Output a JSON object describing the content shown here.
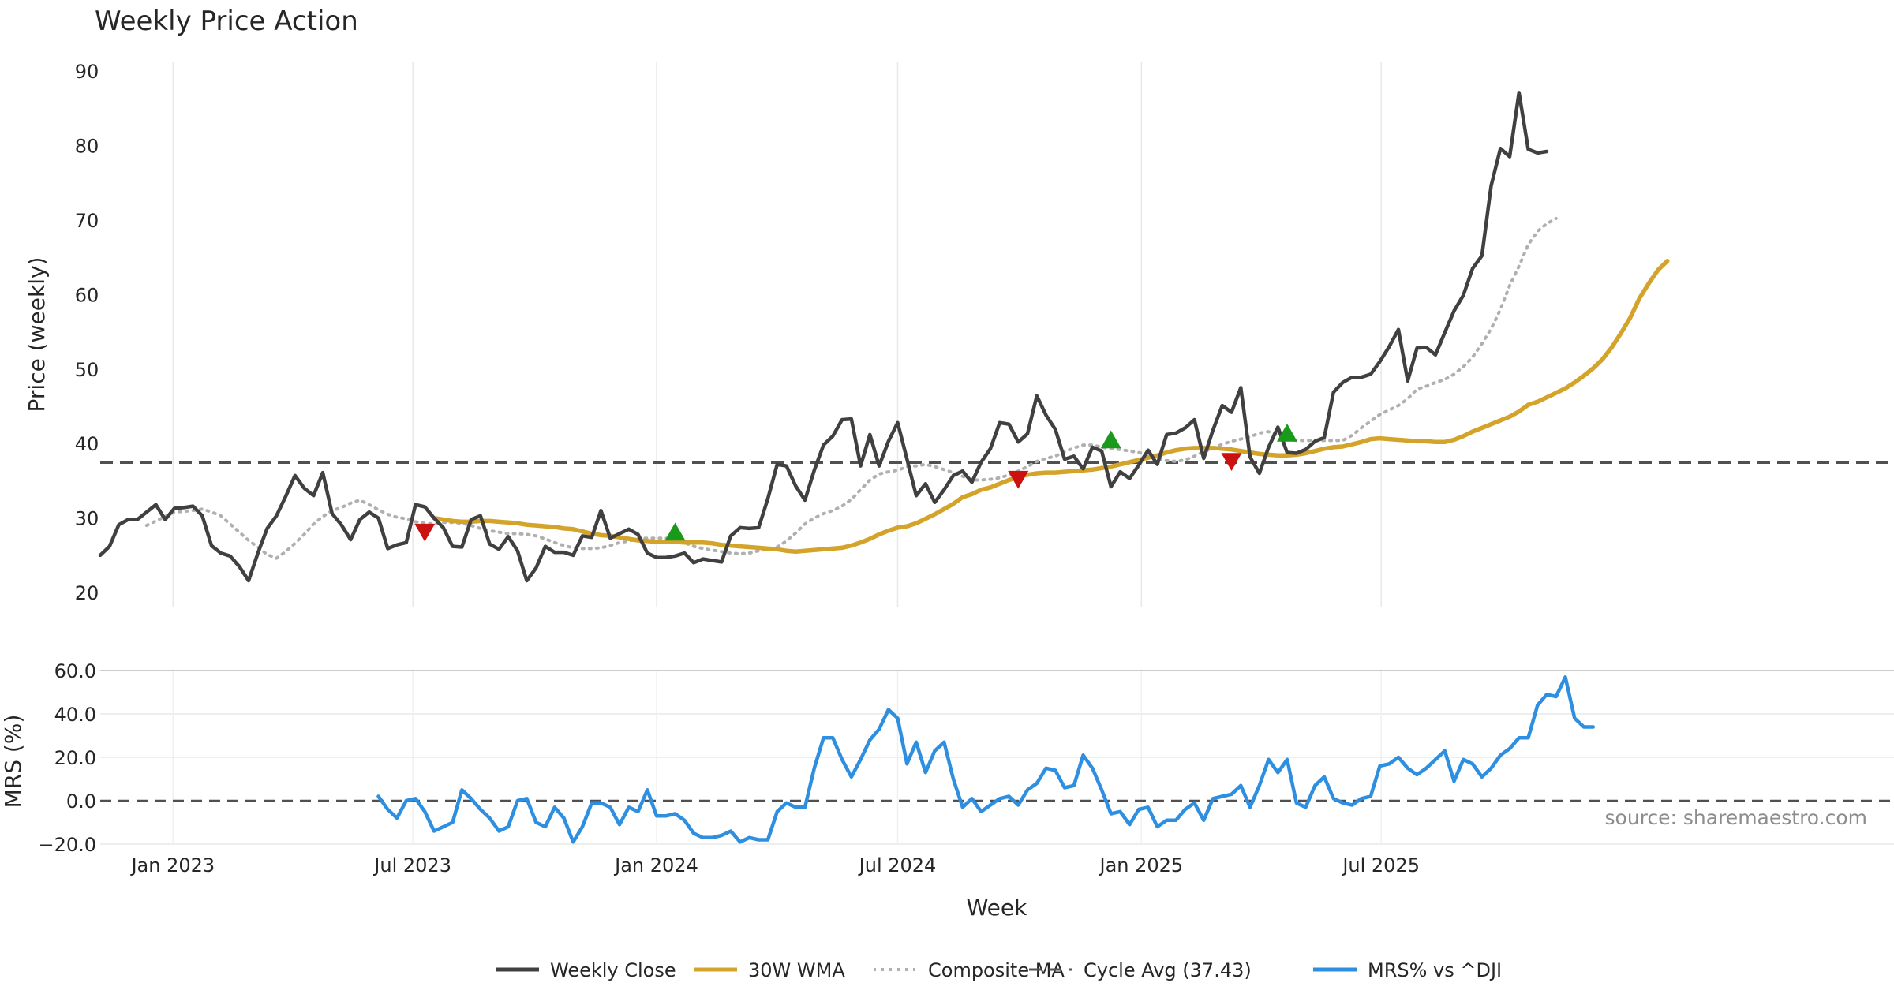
{
  "colors": {
    "close": "#404040",
    "wma": "#d4a32a",
    "composite": "#b0b0b0",
    "cycle": "#505050",
    "mrs": "#2e8fe0",
    "buy": "#1a9a1a",
    "sell": "#cc1111",
    "grid": "#e8e8e8"
  },
  "chart_data": [
    {
      "type": "line",
      "title": "Weekly Price Action",
      "ylabel": "Price (weekly)",
      "xlabel": "Week",
      "ylim": [
        18,
        90
      ],
      "yticks": [
        20,
        30,
        40,
        50,
        60,
        70,
        80,
        90
      ],
      "x_start": "2022-11-07",
      "x_step_weeks": 1,
      "xticks": [
        {
          "label": "Jan 2023",
          "date": "2023-01-01"
        },
        {
          "label": "Jul 2023",
          "date": "2023-07-01"
        },
        {
          "label": "Jan 2024",
          "date": "2024-01-01"
        },
        {
          "label": "Jul 2024",
          "date": "2024-07-01"
        },
        {
          "label": "Jan 2025",
          "date": "2025-01-01"
        },
        {
          "label": "Jul 2025",
          "date": "2025-07-01"
        }
      ],
      "series": [
        {
          "name": "Weekly Close",
          "key": "close",
          "start_index": 0,
          "values": [
            25,
            26.2,
            29.1,
            29.8,
            29.8,
            30.8,
            31.8,
            29.8,
            31.3,
            31.4,
            31.6,
            30.3,
            26.3,
            25.3,
            24.9,
            23.5,
            21.6,
            25.3,
            28.6,
            30.3,
            32.9,
            35.7,
            34.0,
            33.0,
            36.1,
            30.6,
            29.1,
            27.1,
            29.8,
            30.8,
            30.0,
            25.9,
            26.4,
            26.7,
            31.8,
            31.5,
            30.0,
            28.7,
            26.2,
            26.1,
            29.8,
            30.3,
            26.5,
            25.8,
            27.5,
            25.6,
            21.6,
            23.3,
            26.2,
            25.4,
            25.4,
            25.0,
            27.6,
            27.4,
            31.0,
            27.3,
            27.9,
            28.5,
            27.8,
            25.3,
            24.7,
            24.7,
            24.9,
            25.3,
            24.0,
            24.5,
            24.3,
            24.1,
            27.6,
            28.7,
            28.6,
            28.7,
            32.6,
            37.2,
            37.0,
            34.3,
            32.4,
            36.4,
            39.8,
            41.0,
            43.2,
            43.3,
            37.0,
            41.2,
            37.0,
            40.3,
            42.8,
            37.9,
            33.0,
            34.6,
            32.1,
            33.8,
            35.7,
            36.3,
            34.8,
            37.5,
            39.3,
            42.8,
            42.6,
            40.2,
            41.3,
            46.4,
            43.8,
            41.9,
            37.9,
            38.3,
            36.6,
            39.5,
            39.0,
            34.2,
            36.2,
            35.3,
            37.1,
            39.1,
            37.2,
            41.2,
            41.4,
            42.1,
            43.2,
            38.0,
            41.8,
            45.1,
            44.2,
            47.5,
            38.2,
            36.0,
            39.5,
            42.2,
            38.8,
            38.7,
            39.2,
            40.3,
            40.8,
            46.9,
            48.2,
            48.9,
            48.9,
            49.3,
            51.0,
            53.0,
            55.3,
            48.4,
            52.8,
            52.9,
            51.9,
            54.9,
            57.8,
            59.9,
            63.5,
            65.2,
            74.6,
            79.6,
            78.5,
            87.1,
            79.5,
            79.0,
            79.2
          ]
        },
        {
          "name": "30W WMA",
          "key": "wma",
          "start_index": 36,
          "values": [
            30.0,
            29.8,
            29.6,
            29.5,
            29.5,
            29.6,
            29.6,
            29.5,
            29.4,
            29.3,
            29.1,
            29.0,
            28.9,
            28.8,
            28.6,
            28.5,
            28.2,
            27.9,
            27.7,
            27.6,
            27.4,
            27.2,
            27.0,
            26.9,
            26.8,
            26.8,
            26.8,
            26.7,
            26.7,
            26.7,
            26.6,
            26.4,
            26.3,
            26.2,
            26.1,
            26.0,
            25.9,
            25.8,
            25.6,
            25.5,
            25.6,
            25.7,
            25.8,
            25.9,
            26.0,
            26.3,
            26.7,
            27.2,
            27.8,
            28.3,
            28.7,
            28.9,
            29.3,
            29.9,
            30.5,
            31.2,
            31.9,
            32.8,
            33.2,
            33.8,
            34.1,
            34.6,
            35.1,
            35.5,
            35.8,
            36.0,
            36.1,
            36.1,
            36.2,
            36.3,
            36.4,
            36.5,
            36.7,
            36.9,
            37.2,
            37.5,
            37.8,
            38.1,
            38.4,
            38.8,
            39.1,
            39.3,
            39.4,
            39.4,
            39.4,
            39.3,
            39.2,
            39.0,
            38.8,
            38.6,
            38.5,
            38.4,
            38.4,
            38.5,
            38.7,
            39.0,
            39.3,
            39.5,
            39.6,
            39.9,
            40.2,
            40.6,
            40.7,
            40.6,
            40.5,
            40.4,
            40.3,
            40.3,
            40.2,
            40.2,
            40.5,
            41.0,
            41.6,
            42.1,
            42.6,
            43.1,
            43.6,
            44.3,
            45.2,
            45.6,
            46.2,
            46.8,
            47.4,
            48.2,
            49.1,
            50.1,
            51.3,
            52.9,
            54.8,
            56.9,
            59.5,
            61.5,
            63.3,
            64.5
          ]
        },
        {
          "name": "Composite MA",
          "key": "composite",
          "start_index": 5,
          "values": [
            29.0,
            29.6,
            30.2,
            30.8,
            30.9,
            31.0,
            31.2,
            30.8,
            30.3,
            29.2,
            28.1,
            27.0,
            26.1,
            25.1,
            24.6,
            25.5,
            26.6,
            27.8,
            29.2,
            30.2,
            31.0,
            31.4,
            32.0,
            32.4,
            31.8,
            31.1,
            30.5,
            30.1,
            29.9,
            29.5,
            29.3,
            29.2,
            29.4,
            29.4,
            29.3,
            29.0,
            28.6,
            28.3,
            28.1,
            27.9,
            27.9,
            27.8,
            27.6,
            27.2,
            26.7,
            26.3,
            26.0,
            25.9,
            25.9,
            26.0,
            26.3,
            26.7,
            26.9,
            27.2,
            27.3,
            27.3,
            27.3,
            27.0,
            26.7,
            26.2,
            25.9,
            25.7,
            25.5,
            25.3,
            25.2,
            25.3,
            25.6,
            25.8,
            26.1,
            26.9,
            28.0,
            29.2,
            30.0,
            30.6,
            31.0,
            31.6,
            32.5,
            33.8,
            35.1,
            35.9,
            36.2,
            36.4,
            36.9,
            37.0,
            37.2,
            36.9,
            36.5,
            36.1,
            35.6,
            35.1,
            35.1,
            35.2,
            35.4,
            35.8,
            36.3,
            36.9,
            37.6,
            38.0,
            38.3,
            38.9,
            39.4,
            39.8,
            39.8,
            39.5,
            39.3,
            39.2,
            39.0,
            38.8,
            38.5,
            38.0,
            37.7,
            37.6,
            37.8,
            38.3,
            38.9,
            39.4,
            39.9,
            40.3,
            40.6,
            40.9,
            41.4,
            41.6,
            41.1,
            40.6,
            40.4,
            40.4,
            40.4,
            40.4,
            40.4,
            40.4,
            41.1,
            42.1,
            43.0,
            43.9,
            44.5,
            45.1,
            46.0,
            47.3,
            47.7,
            48.2,
            48.6,
            49.3,
            50.3,
            51.6,
            53.4,
            55.4,
            58.0,
            61.2,
            63.8,
            66.7,
            68.5,
            69.5,
            70.2
          ]
        },
        {
          "name": "Cycle Avg (37.43)",
          "key": "cycle",
          "constant": 37.43
        }
      ],
      "markers": [
        {
          "type": "sell",
          "index": 35,
          "value": 28.2
        },
        {
          "type": "buy",
          "index": 62,
          "value": 28.0
        },
        {
          "type": "sell",
          "index": 99,
          "value": 35.3
        },
        {
          "type": "buy",
          "index": 109,
          "value": 40.4
        },
        {
          "type": "sell",
          "index": 122,
          "value": 37.7
        },
        {
          "type": "buy",
          "index": 128,
          "value": 41.3
        }
      ]
    },
    {
      "type": "line",
      "ylabel": "MRS (%)",
      "ylim": [
        -20,
        60
      ],
      "yticks": [
        -20,
        0,
        20,
        40,
        60
      ],
      "ytick_labels": [
        "−20.0",
        "0.0",
        "20.0",
        "40.0",
        "60.0"
      ],
      "reference_line": 0,
      "series": [
        {
          "name": "MRS% vs ^DJI",
          "key": "mrs",
          "start_index": 30,
          "values": [
            2,
            -4,
            -8,
            0,
            1,
            -5,
            -14,
            -12,
            -10,
            5,
            1,
            -4,
            -8,
            -14,
            -12,
            0,
            1,
            -10,
            -12,
            -3,
            -8,
            -19,
            -12,
            -1,
            -1,
            -3,
            -11,
            -3,
            -5,
            5,
            -7,
            -7,
            -6,
            -9,
            -15,
            -17,
            -17,
            -16,
            -14,
            -19,
            -17,
            -18,
            -18,
            -5,
            -1,
            -3,
            -3,
            15,
            29,
            29,
            19,
            11,
            19,
            28,
            33,
            42,
            38,
            17,
            27,
            13,
            23,
            27,
            10,
            -3,
            1,
            -5,
            -2,
            1,
            2,
            -2,
            5,
            8,
            15,
            14,
            6,
            7,
            21,
            15,
            5,
            -6,
            -5,
            -11,
            -4,
            -3,
            -12,
            -9,
            -9,
            -4,
            -1,
            -9,
            1,
            2,
            3,
            7,
            -3,
            7,
            19,
            13,
            19,
            -1,
            -3,
            7,
            11,
            1,
            -1,
            -2,
            1,
            2,
            16,
            17,
            20,
            15,
            12,
            15,
            19,
            23,
            9,
            19,
            17,
            11,
            15,
            21,
            24,
            29,
            29,
            44,
            49,
            48,
            57,
            38,
            34,
            34
          ]
        }
      ]
    }
  ],
  "legend": [
    {
      "label": "Weekly Close",
      "key": "close",
      "style": "solid"
    },
    {
      "label": "30W WMA",
      "key": "wma",
      "style": "solid"
    },
    {
      "label": "Composite MA",
      "key": "composite",
      "style": "dotted"
    },
    {
      "label": "Cycle Avg (37.43)",
      "key": "cycle",
      "style": "dashed"
    },
    {
      "label": "MRS% vs ^DJI",
      "key": "mrs",
      "style": "solid"
    }
  ],
  "source_text": "source: sharemaestro.com"
}
